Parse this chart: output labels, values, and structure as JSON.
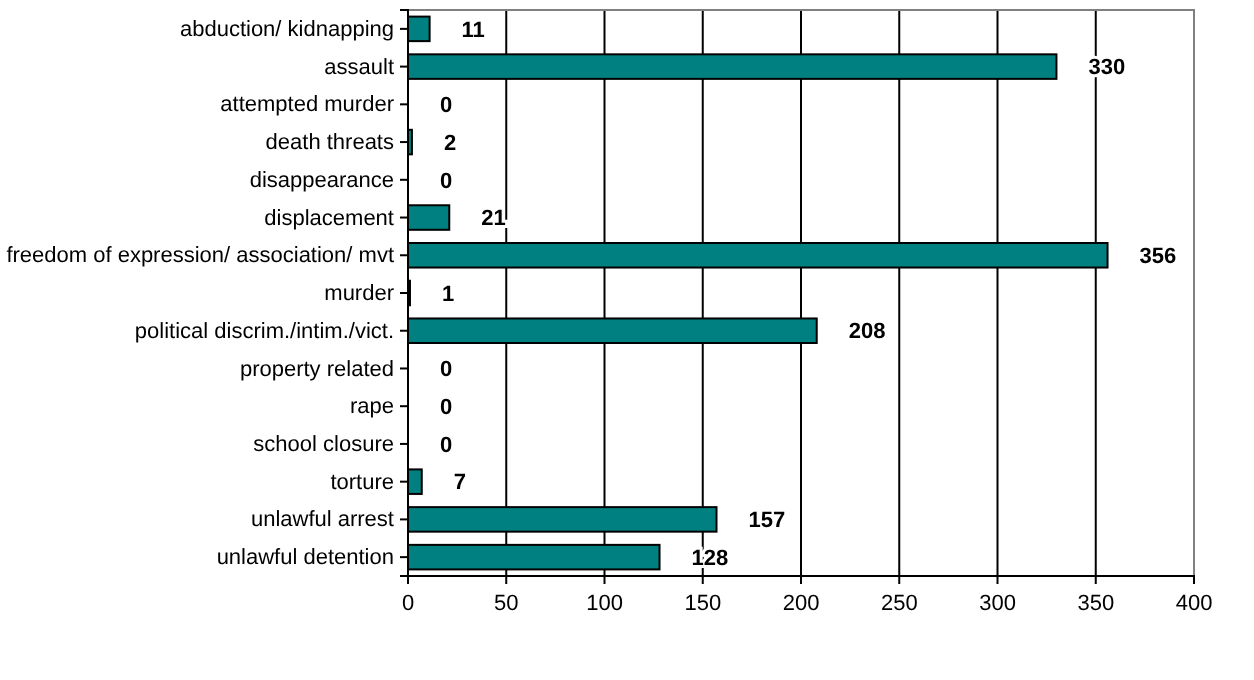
{
  "chart_data": {
    "type": "bar",
    "orientation": "horizontal",
    "categories": [
      "abduction/ kidnapping",
      "assault",
      "attempted murder",
      "death threats",
      "disappearance",
      "displacement",
      "freedom of expression/ association/ mvt",
      "murder",
      "political discrim./intim./vict.",
      "property related",
      "rape",
      "school closure",
      "torture",
      "unlawful arrest",
      "unlawful detention"
    ],
    "values": [
      11,
      330,
      0,
      2,
      0,
      21,
      356,
      1,
      208,
      0,
      0,
      0,
      7,
      157,
      128
    ],
    "color": "#008080",
    "xlim": [
      0,
      400
    ],
    "xticks": [
      0,
      50,
      100,
      150,
      200,
      250,
      300,
      350,
      400
    ],
    "grid": "x",
    "data_labels": true
  }
}
